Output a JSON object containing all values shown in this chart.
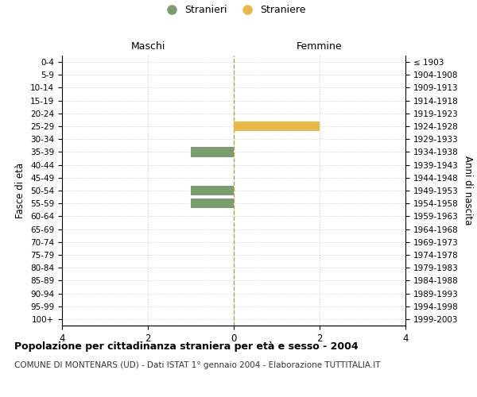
{
  "age_groups": [
    "0-4",
    "5-9",
    "10-14",
    "15-19",
    "20-24",
    "25-29",
    "30-34",
    "35-39",
    "40-44",
    "45-49",
    "50-54",
    "55-59",
    "60-64",
    "65-69",
    "70-74",
    "75-79",
    "80-84",
    "85-89",
    "90-94",
    "95-99",
    "100+"
  ],
  "birth_years": [
    "1999-2003",
    "1994-1998",
    "1989-1993",
    "1984-1988",
    "1979-1983",
    "1974-1978",
    "1969-1973",
    "1964-1968",
    "1959-1963",
    "1954-1958",
    "1949-1953",
    "1944-1948",
    "1939-1943",
    "1934-1938",
    "1929-1933",
    "1924-1928",
    "1919-1923",
    "1914-1918",
    "1909-1913",
    "1904-1908",
    "≤ 1903"
  ],
  "males": [
    0,
    0,
    0,
    0,
    0,
    0,
    0,
    1,
    0,
    0,
    1,
    1,
    0,
    0,
    0,
    0,
    0,
    0,
    0,
    0,
    0
  ],
  "females": [
    0,
    0,
    0,
    0,
    0,
    2,
    0,
    0,
    0,
    0,
    0,
    0,
    0,
    0,
    0,
    0,
    0,
    0,
    0,
    0,
    0
  ],
  "male_color": "#7a9e6e",
  "female_color": "#e8b84b",
  "xlim": [
    -4,
    4
  ],
  "xticks": [
    -4,
    -2,
    0,
    2,
    4
  ],
  "xticklabels": [
    "4",
    "2",
    "0",
    "2",
    "4"
  ],
  "title": "Popolazione per cittadinanza straniera per età e sesso - 2004",
  "subtitle": "COMUNE DI MONTENARS (UD) - Dati ISTAT 1° gennaio 2004 - Elaborazione TUTTITALIA.IT",
  "ylabel_left": "Fasce di età",
  "ylabel_right": "Anni di nascita",
  "legend_male": "Stranieri",
  "legend_female": "Straniere",
  "header_left": "Maschi",
  "header_right": "Femmine",
  "background_color": "#ffffff",
  "grid_color": "#cccccc",
  "bar_height": 0.75
}
